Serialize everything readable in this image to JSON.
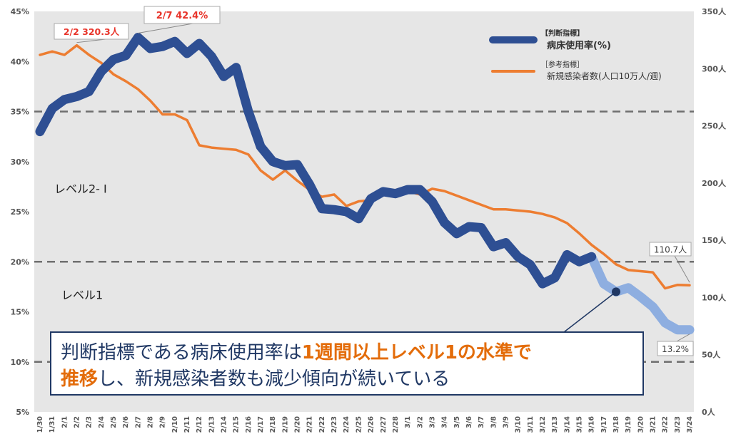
{
  "chart_data": {
    "type": "line",
    "categories": [
      "1/30",
      "1/31",
      "2/1",
      "2/2",
      "2/3",
      "2/4",
      "2/5",
      "2/6",
      "2/7",
      "2/8",
      "2/9",
      "2/10",
      "2/11",
      "2/12",
      "2/13",
      "2/14",
      "2/15",
      "2/16",
      "2/17",
      "2/18",
      "2/19",
      "2/20",
      "2/21",
      "2/22",
      "2/23",
      "2/24",
      "2/25",
      "2/26",
      "2/27",
      "2/28",
      "3/1",
      "3/2",
      "3/3",
      "3/4",
      "3/5",
      "3/6",
      "3/7",
      "3/8",
      "3/9",
      "3/10",
      "3/11",
      "3/12",
      "3/13",
      "3/14",
      "3/15",
      "3/16",
      "3/17",
      "3/18",
      "3/19",
      "3/20",
      "3/21",
      "3/22",
      "3/23",
      "3/24"
    ],
    "y_left": {
      "ticks": [
        "5%",
        "10%",
        "15%",
        "20%",
        "25%",
        "30%",
        "35%",
        "40%",
        "45%"
      ],
      "range": [
        5,
        45
      ]
    },
    "y_right": {
      "ticks": [
        "0人",
        "50人",
        "100人",
        "150人",
        "200人",
        "250人",
        "300人",
        "350人"
      ],
      "range": [
        0,
        350
      ]
    },
    "series": [
      {
        "name": "病床使用率(%)",
        "tag": "【判断指標】",
        "axis": "left",
        "color": "#2e4f93",
        "highlight_color": "#8eaee0",
        "highlight_from": "3/16",
        "values": [
          33.0,
          35.3,
          36.2,
          36.5,
          37.0,
          39.0,
          40.2,
          40.6,
          42.4,
          41.3,
          41.5,
          42.0,
          40.8,
          41.8,
          40.5,
          38.5,
          39.4,
          35.0,
          31.5,
          30.0,
          29.6,
          29.7,
          27.7,
          25.3,
          25.2,
          25.0,
          24.3,
          26.3,
          27.0,
          26.8,
          27.2,
          27.2,
          26.0,
          23.9,
          22.8,
          23.5,
          23.4,
          21.5,
          21.9,
          20.5,
          19.7,
          17.8,
          18.4,
          20.7,
          20.0,
          20.5,
          17.8,
          17.0,
          17.4,
          16.5,
          15.5,
          13.9,
          13.2,
          13.2
        ]
      },
      {
        "name": "新規感染者数(人口10万人/週)",
        "tag": "［参考指標］",
        "axis": "right",
        "color": "#ed7d31",
        "values": [
          312,
          315,
          312,
          320.3,
          312,
          305,
          295,
          289,
          282,
          272,
          260,
          260,
          255,
          233,
          231,
          230,
          229,
          225,
          211,
          203,
          211,
          202,
          194,
          188,
          190,
          180,
          184,
          185,
          190,
          191,
          193,
          190,
          195,
          193,
          189,
          185,
          181,
          177,
          177,
          176,
          175,
          173,
          170,
          165,
          156,
          146,
          138,
          129,
          124,
          123,
          122,
          108,
          111,
          110.7
        ]
      }
    ],
    "reference_lines": [
      {
        "value": 35,
        "axis": "left"
      },
      {
        "value": 20,
        "axis": "left"
      },
      {
        "value": 10,
        "axis": "left"
      }
    ],
    "zone_labels": [
      {
        "text": "レベル2- Ⅰ",
        "y_value": 27.3
      },
      {
        "text": "レベル1",
        "y_value": 16.7
      }
    ],
    "callouts": [
      {
        "text": "2/2  320.3人",
        "category": "2/2",
        "series": 1,
        "color": "#e8342a"
      },
      {
        "text": "2/7  42.4%",
        "category": "2/7",
        "series": 0,
        "color": "#e8342a"
      },
      {
        "text": "110.7人",
        "category": "3/24",
        "series": 1,
        "color": "#404040"
      },
      {
        "text": "13.2%",
        "category": "3/24",
        "series": 0,
        "color": "#404040"
      }
    ],
    "legend_position": "top-right",
    "grid": false
  },
  "summary": {
    "line1_prefix": "判断指標である病床使用率は",
    "line1_emph": "1週間以上レベル1の水準で",
    "line2_emph": "推移",
    "line2_rest": "し、新規感染者数も減少傾向が続いている",
    "emph_color": "#e36c0a",
    "text_color": "#203864"
  }
}
